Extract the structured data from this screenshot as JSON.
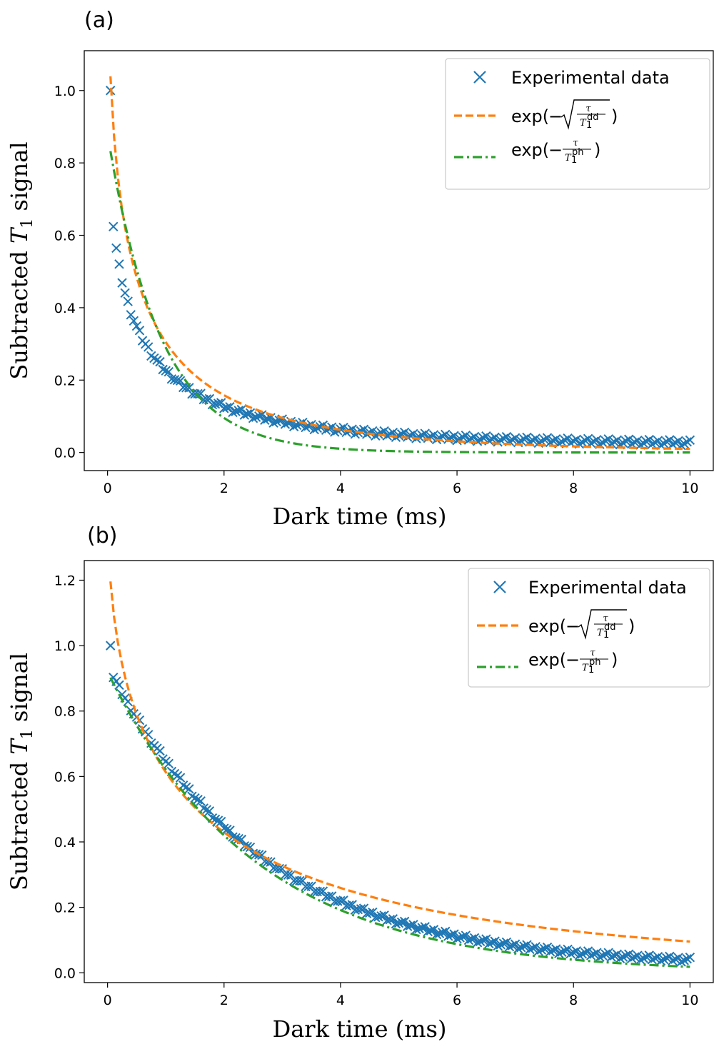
{
  "chart_data": [
    {
      "type": "scatter",
      "panel_label": "(a)",
      "xlabel": "Dark time (ms)",
      "ylabel_main": "Subtracted ",
      "ylabel_sym": "T",
      "ylabel_sub": "1",
      "ylabel_tail": " signal",
      "xlim": [
        -0.4,
        10.4
      ],
      "ylim": [
        -0.05,
        1.11
      ],
      "xticks": [
        0,
        2,
        4,
        6,
        8,
        10
      ],
      "yticks": [
        0.0,
        0.2,
        0.4,
        0.6,
        0.8,
        1.0
      ],
      "legend_position": "top-right",
      "colors": {
        "data": "#1f77b4",
        "stretched": "#ff7f0e",
        "single": "#2ca02c"
      },
      "series": [
        {
          "name": "Experimental data",
          "kind": "markers",
          "marker": "x",
          "model": {
            "form": "stretched",
            "T1": 0.4,
            "x_start": 0.05,
            "x_end": 10.0,
            "n": 200,
            "offset": 0.02,
            "top_point": [
              0.05,
              1.0
            ]
          }
        },
        {
          "name": "exp(−√(τ/T₁ᵈᵈ))",
          "kind": "dashed",
          "model": {
            "form": "stretched",
            "T1": 0.4,
            "x_start": 0.05,
            "x_end": 10.0,
            "n": 160,
            "scale": 1.48,
            "offset": 0.0
          }
        },
        {
          "name": "exp(−τ/T₁ᵖʰ)",
          "kind": "dashdot",
          "model": {
            "form": "single",
            "T1": 0.9,
            "x_start": 0.05,
            "x_end": 10.0,
            "n": 160,
            "scale": 0.88,
            "offset": 0.0
          }
        }
      ],
      "legend_entries": {
        "data": "Experimental data",
        "fit1_prefix": "exp(",
        "fit1_minus": "−",
        "fit1_tau": "τ",
        "fit1_T": "T",
        "fit1_sub": "1",
        "fit1_sup": "dd",
        "fit1_suffix": ")",
        "fit2_prefix": "exp(",
        "fit2_minus": "−",
        "fit2_tau": "τ",
        "fit2_T": "T",
        "fit2_sub": "1",
        "fit2_sup": "ph",
        "fit2_suffix": ")"
      }
    },
    {
      "type": "scatter",
      "panel_label": "(b)",
      "xlabel": "Dark time (ms)",
      "ylabel_main": "Subtracted ",
      "ylabel_sym": "T",
      "ylabel_sub": "1",
      "ylabel_tail": " signal",
      "xlim": [
        -0.4,
        10.4
      ],
      "ylim": [
        -0.03,
        1.26
      ],
      "xticks": [
        0,
        2,
        4,
        6,
        8,
        10
      ],
      "yticks": [
        0.0,
        0.2,
        0.4,
        0.6,
        0.8,
        1.0,
        1.2
      ],
      "legend_position": "top-right",
      "colors": {
        "data": "#1f77b4",
        "stretched": "#ff7f0e",
        "single": "#2ca02c"
      },
      "series": [
        {
          "name": "Experimental data",
          "kind": "markers",
          "marker": "x",
          "model": {
            "form": "single",
            "T1": 2.6,
            "x_start": 0.05,
            "x_end": 10.0,
            "n": 200,
            "scale": 0.92,
            "offset": 0.02,
            "top_point": [
              0.05,
              1.0
            ]
          }
        },
        {
          "name": "exp(−√(τ/T₁ᵈᵈ))",
          "kind": "dashed",
          "model": {
            "form": "stretched",
            "T1": 1.35,
            "x_start": 0.05,
            "x_end": 10.0,
            "n": 160,
            "scale": 1.45,
            "offset": 0.0
          }
        },
        {
          "name": "exp(−τ/T₁ᵖʰ)",
          "kind": "dashdot",
          "model": {
            "form": "single",
            "T1": 2.55,
            "x_start": 0.05,
            "x_end": 10.0,
            "n": 160,
            "scale": 0.92,
            "offset": 0.0
          }
        }
      ],
      "legend_entries": {
        "data": "Experimental data",
        "fit1_prefix": "exp(",
        "fit1_minus": "−",
        "fit1_tau": "τ",
        "fit1_T": "T",
        "fit1_sub": "1",
        "fit1_sup": "dd",
        "fit1_suffix": ")",
        "fit2_prefix": "exp(",
        "fit2_minus": "−",
        "fit2_tau": "τ",
        "fit2_T": "T",
        "fit2_sub": "1",
        "fit2_sup": "ph",
        "fit2_suffix": ")"
      }
    }
  ]
}
